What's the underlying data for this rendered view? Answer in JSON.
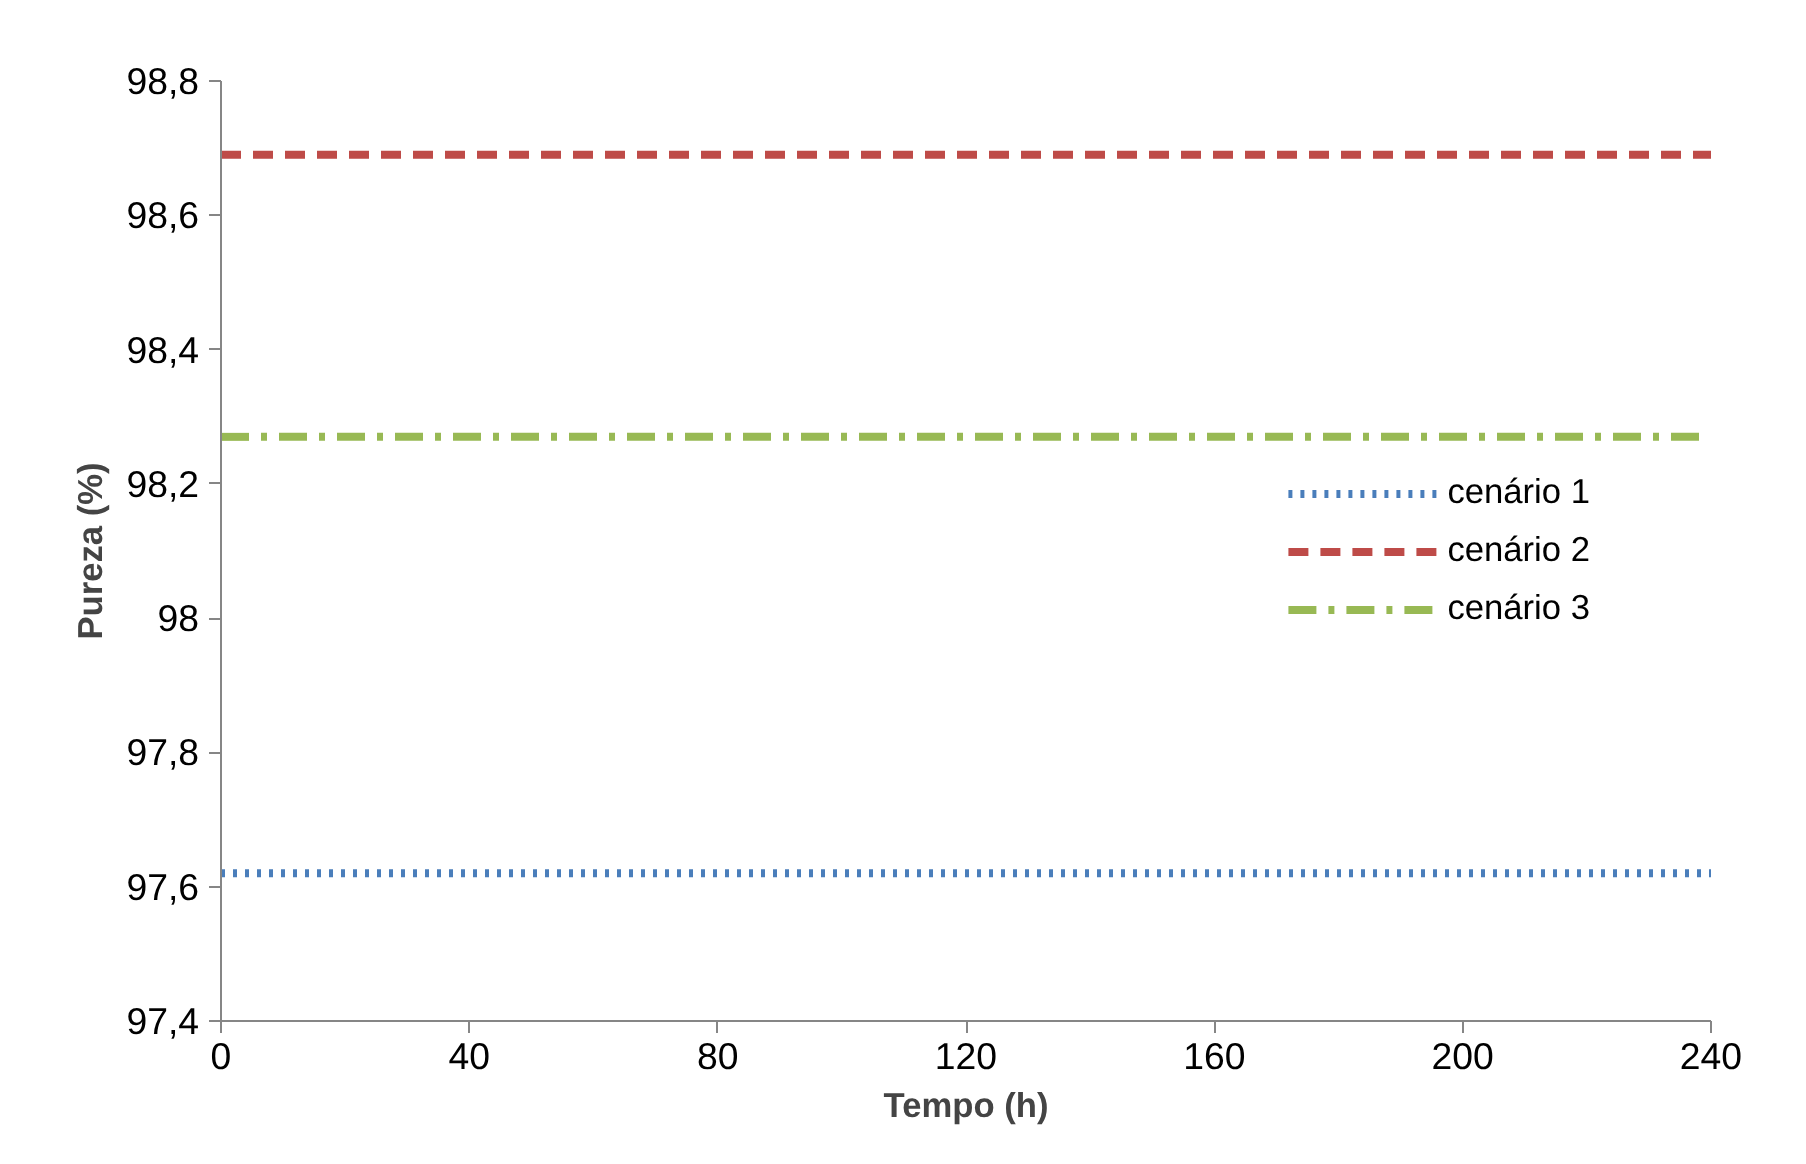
{
  "chart_data": {
    "type": "line",
    "xlabel": "Tempo (h)",
    "ylabel": "Pureza (%)",
    "x": [
      0,
      240
    ],
    "series": [
      {
        "name": "cenário 1",
        "color": "#4a7ebb",
        "line_style": "dotted",
        "values": [
          97.62,
          97.62
        ]
      },
      {
        "name": "cenário 2",
        "color": "#be4b48",
        "line_style": "dashed",
        "values": [
          98.69,
          98.69
        ]
      },
      {
        "name": "cenário 3",
        "color": "#98b954",
        "line_style": "dashdot",
        "values": [
          98.27,
          98.27
        ]
      }
    ],
    "xlim": [
      0,
      240
    ],
    "xticks": [
      0,
      40,
      80,
      120,
      160,
      200,
      240
    ],
    "ylim": [
      97.4,
      98.8
    ],
    "yticks": [
      {
        "value": 97.4,
        "label": "97,4"
      },
      {
        "value": 97.6,
        "label": "97,6"
      },
      {
        "value": 97.8,
        "label": "97,8"
      },
      {
        "value": 98,
        "label": "98"
      },
      {
        "value": 98.2,
        "label": "98,2"
      },
      {
        "value": 98.4,
        "label": "98,4"
      },
      {
        "value": 98.6,
        "label": "98,6"
      },
      {
        "value": 98.8,
        "label": "98,8"
      }
    ],
    "grid": false,
    "legend": "right",
    "marker": "none"
  }
}
